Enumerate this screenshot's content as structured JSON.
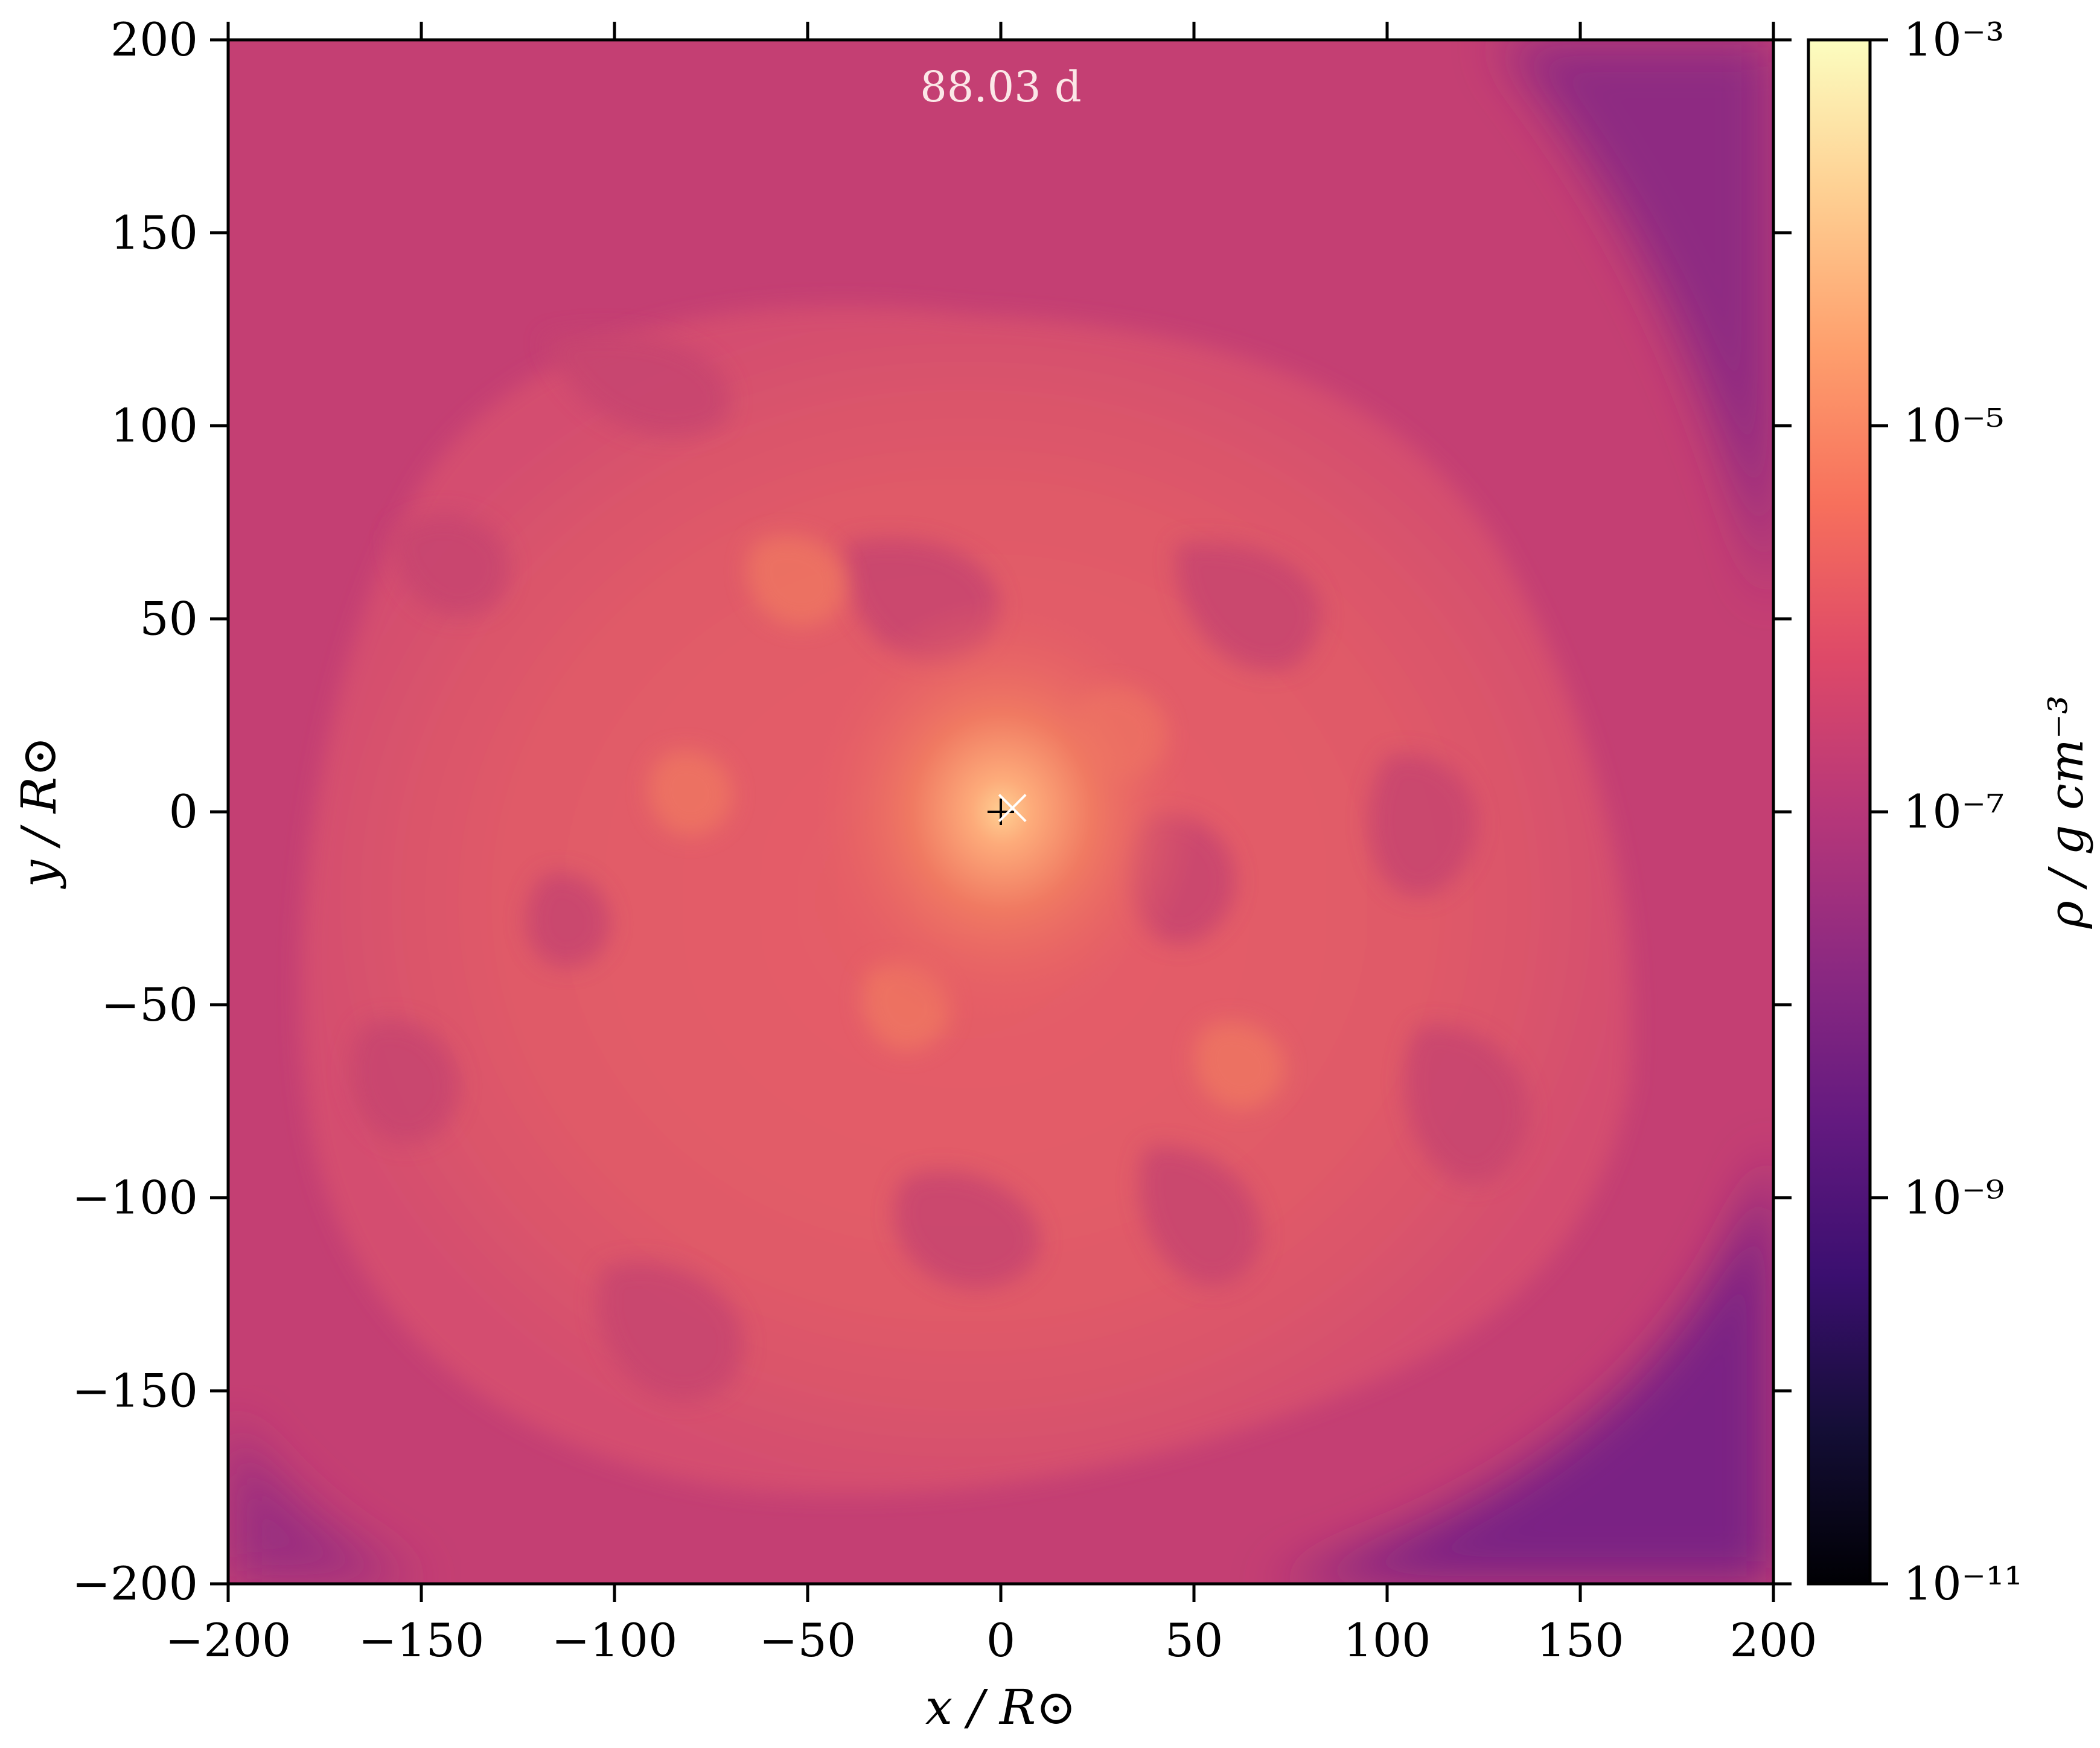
{
  "chart_data": {
    "type": "heatmap",
    "title": "",
    "annotation": "88.03 d",
    "xlabel": "x / R⊙",
    "ylabel": "y / R⊙",
    "xlim": [
      -200,
      200
    ],
    "ylim": [
      -200,
      200
    ],
    "xticks": [
      -200,
      -150,
      -100,
      -50,
      0,
      50,
      100,
      150,
      200
    ],
    "yticks": [
      -200,
      -150,
      -100,
      -50,
      0,
      50,
      100,
      150,
      200
    ],
    "xtick_labels": [
      "−200",
      "−150",
      "−100",
      "−50",
      "0",
      "50",
      "100",
      "150",
      "200"
    ],
    "ytick_labels": [
      "−200",
      "−150",
      "−100",
      "−50",
      "0",
      "50",
      "100",
      "150",
      "200"
    ],
    "colorbar": {
      "label": "ρ / g cm⁻³",
      "scale": "log",
      "range": [
        1e-11,
        0.001
      ],
      "colormap": "magma",
      "ticks": [
        1e-11,
        1e-09,
        1e-07,
        1e-05,
        0.001
      ],
      "tick_labels": [
        "10⁻¹¹",
        "10⁻⁹",
        "10⁻⁷",
        "10⁻⁵",
        "10⁻³"
      ]
    },
    "markers": [
      {
        "symbol": "+",
        "x": 0,
        "y": 0,
        "color": "#000000"
      },
      {
        "symbol": "×",
        "x": 3,
        "y": 1,
        "color": "#ffffff"
      }
    ],
    "grid": false
  }
}
